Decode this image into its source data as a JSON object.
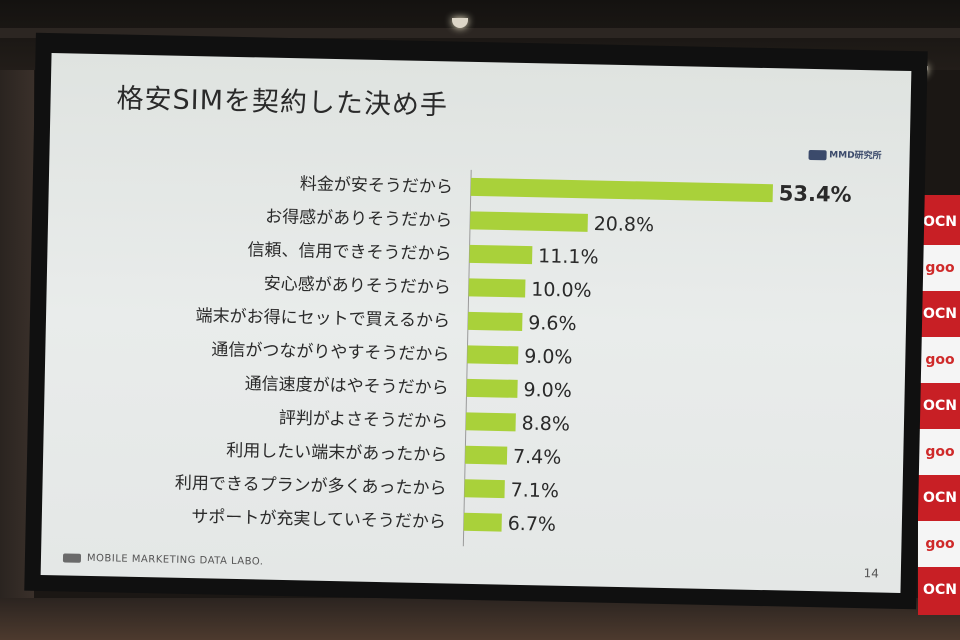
{
  "slide": {
    "title": "格安SIMを契約した決め手",
    "logo_top_right": "MMD研究所",
    "footer_logo": "MOBILE MARKETING DATA LABO.",
    "page_number": "14"
  },
  "banner": {
    "items": [
      "OCN",
      "goo",
      "OCN",
      "goo",
      "OCN",
      "goo",
      "OCN",
      "goo",
      "OCN"
    ]
  },
  "colors": {
    "bar": "#a9d13a",
    "text": "#2a2a2a"
  },
  "chart_data": {
    "type": "bar",
    "orientation": "horizontal",
    "title": "格安SIMを契約した決め手",
    "categories": [
      "料金が安そうだから",
      "お得感がありそうだから",
      "信頼、信用できそうだから",
      "安心感がありそうだから",
      "端末がお得にセットで買えるから",
      "通信がつながりやすそうだから",
      "通信速度がはやそうだから",
      "評判がよさそうだから",
      "利用したい端末があったから",
      "利用できるプランが多くあったから",
      "サポートが充実していそうだから"
    ],
    "values": [
      53.4,
      20.8,
      11.1,
      10.0,
      9.6,
      9.0,
      9.0,
      8.8,
      7.4,
      7.1,
      6.7
    ],
    "value_labels": [
      "53.4%",
      "20.8%",
      "11.1%",
      "10.0%",
      "9.6%",
      "9.0%",
      "9.0%",
      "8.8%",
      "7.4%",
      "7.1%",
      "6.7%"
    ],
    "xlabel": "",
    "ylabel": "",
    "xlim": [
      0,
      53.4
    ],
    "legend": "none",
    "grid": false
  }
}
